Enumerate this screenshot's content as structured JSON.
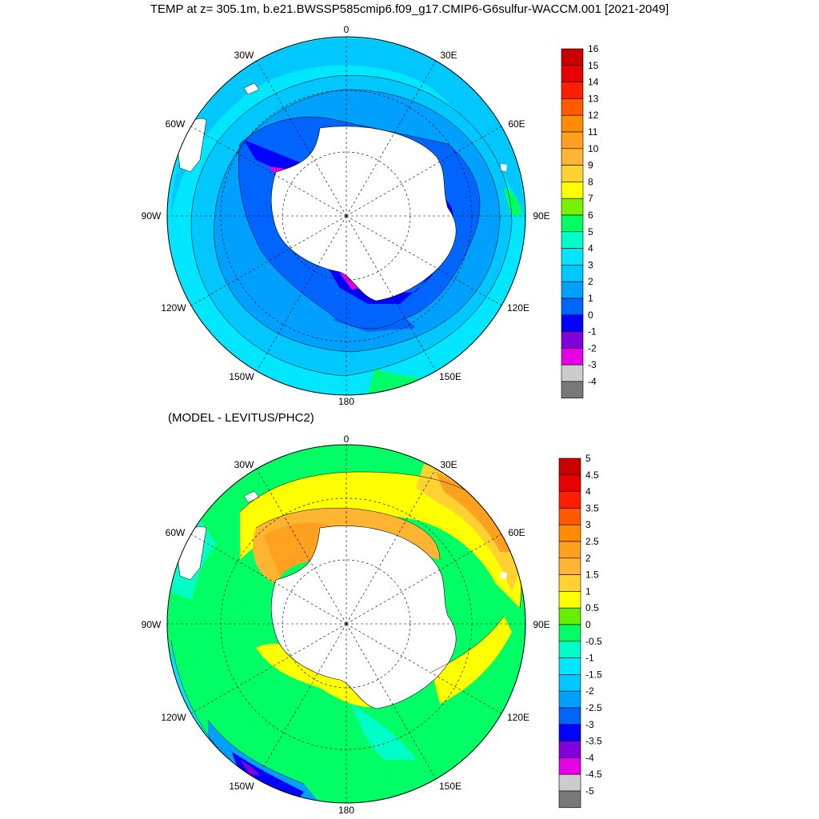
{
  "title": "TEMP at z= 305.1m, b.e21.BWSSP585cmip6.f09_g17.CMIP6-G6sulfur-WACCM.001 [2021-2049]",
  "subtitle": "(MODEL - LEVITUS/PHC2)",
  "lon_labels": [
    "0",
    "30E",
    "60E",
    "90E",
    "120E",
    "150E",
    "180",
    "150W",
    "120W",
    "90W",
    "60W",
    "30W"
  ],
  "top_colorbar": {
    "labels": [
      "16",
      "15",
      "14",
      "13",
      "12",
      "11",
      "10",
      "9",
      "8",
      "7",
      "6",
      "5",
      "4",
      "3",
      "2",
      "1",
      "0",
      "-1",
      "-2",
      "-3",
      "-4"
    ],
    "colors": [
      "#c80000",
      "#e60000",
      "#ff1e00",
      "#ff5a00",
      "#ff8c00",
      "#ffa020",
      "#ffb432",
      "#ffd232",
      "#ffff00",
      "#78f000",
      "#00ff64",
      "#00ffc8",
      "#00e6ff",
      "#00c8ff",
      "#00a0ff",
      "#0064ff",
      "#0000ff",
      "#8200dc",
      "#e600e6",
      "#cccccc",
      "#787878"
    ]
  },
  "bottom_colorbar": {
    "labels": [
      "5",
      "4.5",
      "4",
      "3.5",
      "3",
      "2.5",
      "2",
      "1.5",
      "1",
      "0.5",
      "0",
      "-0.5",
      "-1",
      "-1.5",
      "-2",
      "-2.5",
      "-3",
      "-3.5",
      "-4",
      "-4.5",
      "-5"
    ],
    "colors": [
      "#c80000",
      "#e60000",
      "#ff1e00",
      "#ff5a00",
      "#ff8c00",
      "#ffa020",
      "#ffb432",
      "#ffd232",
      "#ffff00",
      "#64f000",
      "#00ff64",
      "#00ffc8",
      "#00e6ff",
      "#00c8ff",
      "#00a0ff",
      "#0064ff",
      "#0000ff",
      "#8200dc",
      "#e600e6",
      "#cccccc",
      "#787878"
    ]
  }
}
